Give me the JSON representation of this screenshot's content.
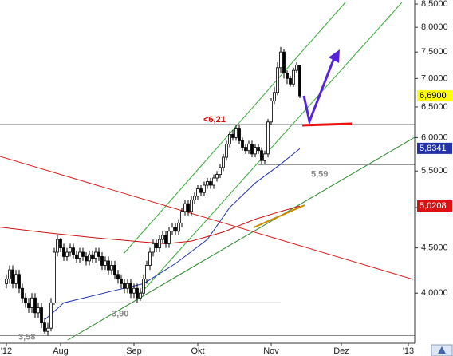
{
  "chart_data": {
    "type": "candlestick",
    "xlim": [
      0,
      130
    ],
    "xticks": [
      {
        "value": 2,
        "label": "'12"
      },
      {
        "value": 19,
        "label": "Aug"
      },
      {
        "value": 42,
        "label": "Sep"
      },
      {
        "value": 62,
        "label": "Okt"
      },
      {
        "value": 85,
        "label": "Nov"
      },
      {
        "value": 107,
        "label": "Dez"
      },
      {
        "value": 128,
        "label": "'13"
      }
    ],
    "ylim": [
      3.51,
      8.59
    ],
    "log_y": true,
    "yticks": [
      {
        "value": 4,
        "label": "4,0000"
      },
      {
        "value": 4.5,
        "label": "4,5000"
      },
      {
        "value": 5,
        "label": "5,0000"
      },
      {
        "value": 5.5,
        "label": "5,5000"
      },
      {
        "value": 6,
        "label": "6,0000"
      },
      {
        "value": 6.5,
        "label": "6,5000"
      },
      {
        "value": 7,
        "label": "7,0000"
      },
      {
        "value": 7.5,
        "label": "7,5000"
      },
      {
        "value": 8,
        "label": "8,0000"
      },
      {
        "value": 8.5,
        "label": "8,5000"
      }
    ],
    "candles": {
      "x": [
        2,
        3,
        4,
        5,
        6,
        7,
        8,
        9,
        10,
        11,
        12,
        13,
        14,
        15,
        16,
        17,
        18,
        19,
        20,
        21,
        22,
        23,
        24,
        25,
        26,
        27,
        28,
        29,
        30,
        31,
        32,
        33,
        34,
        35,
        36,
        37,
        38,
        39,
        40,
        41,
        42,
        43,
        44,
        45,
        46,
        47,
        48,
        49,
        50,
        51,
        52,
        53,
        54,
        55,
        56,
        57,
        58,
        59,
        60,
        61,
        62,
        63,
        64,
        65,
        66,
        67,
        68,
        69,
        70,
        71,
        72,
        73,
        74,
        75,
        76,
        77,
        78,
        79,
        80,
        81,
        82,
        83,
        84,
        85,
        86,
        87,
        88,
        89,
        90,
        91,
        92,
        93,
        94
      ],
      "open": [
        4.1,
        4.15,
        4.25,
        4.1,
        4.2,
        4.05,
        3.95,
        3.9,
        3.85,
        3.95,
        3.8,
        3.85,
        3.7,
        3.62,
        3.65,
        3.9,
        4.45,
        4.6,
        4.5,
        4.4,
        4.45,
        4.5,
        4.42,
        4.38,
        4.45,
        4.4,
        4.35,
        4.42,
        4.38,
        4.45,
        4.4,
        4.3,
        4.35,
        4.25,
        4.3,
        4.2,
        4.15,
        4.1,
        4.05,
        4.1,
        4.0,
        4.05,
        3.95,
        4.0,
        4.15,
        4.3,
        4.45,
        4.55,
        4.5,
        4.6,
        4.65,
        4.55,
        4.7,
        4.75,
        4.7,
        4.8,
        4.95,
        5.05,
        4.95,
        5.1,
        5.15,
        5.25,
        5.2,
        5.3,
        5.35,
        5.3,
        5.4,
        5.45,
        5.55,
        5.7,
        5.9,
        6.05,
        6.0,
        6.15,
        5.95,
        5.85,
        5.8,
        5.9,
        5.75,
        5.85,
        5.8,
        5.65,
        5.75,
        6.25,
        6.6,
        6.75,
        7.2,
        7.5,
        7.1,
        7.0,
        6.9,
        7.15,
        7.25
      ],
      "high": [
        4.2,
        4.3,
        4.3,
        4.25,
        4.25,
        4.1,
        4.0,
        3.95,
        4.0,
        4.0,
        3.9,
        3.9,
        3.75,
        3.7,
        3.95,
        4.5,
        4.65,
        4.62,
        4.55,
        4.5,
        4.55,
        4.55,
        4.47,
        4.5,
        4.5,
        4.45,
        4.47,
        4.47,
        4.5,
        4.5,
        4.45,
        4.4,
        4.4,
        4.35,
        4.35,
        4.25,
        4.2,
        4.15,
        4.15,
        4.15,
        4.1,
        4.1,
        4.05,
        4.2,
        4.35,
        4.5,
        4.6,
        4.6,
        4.65,
        4.7,
        4.7,
        4.75,
        4.8,
        4.8,
        4.85,
        5.0,
        5.1,
        5.1,
        5.15,
        5.2,
        5.3,
        5.3,
        5.35,
        5.4,
        5.4,
        5.45,
        5.5,
        5.6,
        5.75,
        5.95,
        6.1,
        6.12,
        6.2,
        6.21,
        6.0,
        5.9,
        5.95,
        5.95,
        5.9,
        5.9,
        5.85,
        5.8,
        6.3,
        6.65,
        6.85,
        7.3,
        7.6,
        7.55,
        7.15,
        7.05,
        7.2,
        7.3,
        7.25
      ],
      "low": [
        4.05,
        4.1,
        4.05,
        4.05,
        4.0,
        3.9,
        3.85,
        3.8,
        3.8,
        3.75,
        3.75,
        3.65,
        3.6,
        3.58,
        3.62,
        3.88,
        4.4,
        4.45,
        4.35,
        4.35,
        4.4,
        4.38,
        4.33,
        4.33,
        4.35,
        4.3,
        4.3,
        4.33,
        4.33,
        4.35,
        4.25,
        4.25,
        4.2,
        4.2,
        4.15,
        4.1,
        4.05,
        4.0,
        4.0,
        3.95,
        3.95,
        3.9,
        3.92,
        3.97,
        4.1,
        4.25,
        4.4,
        4.45,
        4.45,
        4.55,
        4.5,
        4.5,
        4.65,
        4.65,
        4.65,
        4.75,
        4.9,
        4.9,
        4.9,
        5.05,
        5.1,
        5.15,
        5.15,
        5.25,
        5.25,
        5.25,
        5.35,
        5.4,
        5.5,
        5.65,
        5.85,
        5.95,
        5.95,
        5.9,
        5.8,
        5.75,
        5.75,
        5.7,
        5.7,
        5.75,
        5.59,
        5.6,
        5.7,
        6.2,
        6.55,
        6.7,
        7.1,
        7.0,
        6.9,
        6.85,
        6.85,
        7.1,
        6.65
      ],
      "close": [
        4.15,
        4.25,
        4.1,
        4.2,
        4.05,
        3.95,
        3.9,
        3.85,
        3.95,
        3.8,
        3.85,
        3.7,
        3.62,
        3.65,
        3.9,
        4.45,
        4.6,
        4.5,
        4.4,
        4.45,
        4.5,
        4.42,
        4.38,
        4.45,
        4.4,
        4.35,
        4.42,
        4.38,
        4.45,
        4.4,
        4.3,
        4.35,
        4.25,
        4.3,
        4.2,
        4.15,
        4.1,
        4.05,
        4.1,
        4.0,
        4.05,
        3.95,
        4.0,
        4.15,
        4.3,
        4.45,
        4.55,
        4.5,
        4.6,
        4.65,
        4.55,
        4.7,
        4.75,
        4.7,
        4.8,
        4.95,
        5.05,
        4.95,
        5.1,
        5.15,
        5.25,
        5.2,
        5.3,
        5.35,
        5.3,
        5.4,
        5.45,
        5.55,
        5.7,
        5.9,
        6.05,
        6.0,
        6.15,
        5.95,
        5.85,
        5.8,
        5.9,
        5.75,
        5.85,
        5.8,
        5.65,
        5.75,
        6.25,
        6.6,
        6.75,
        7.2,
        7.5,
        7.1,
        7.0,
        6.9,
        7.15,
        7.25,
        6.69
      ]
    },
    "moving_averages": [
      {
        "color": "#2233aa",
        "x": [
          14,
          20,
          35,
          45,
          55,
          65,
          72,
          80,
          88,
          94
        ],
        "values": [
          3.73,
          3.9,
          4.02,
          4.1,
          4.32,
          4.6,
          5.0,
          5.33,
          5.6,
          5.83
        ]
      },
      {
        "color": "#cc1111",
        "x": [
          0,
          15,
          30,
          45,
          52,
          60,
          70,
          80,
          88,
          94
        ],
        "values": [
          4.75,
          4.68,
          4.62,
          4.57,
          4.55,
          4.58,
          4.69,
          4.85,
          4.95,
          5.02
        ]
      }
    ],
    "levels": [
      {
        "value": 6.21,
        "label": "<6,21",
        "color": "#e00000",
        "x": [
          0,
          130
        ]
      },
      {
        "value": 5.59,
        "label": "5,59",
        "color": "#888888",
        "x": [
          81,
          130
        ]
      },
      {
        "value": 3.9,
        "label": "3,90",
        "color": "#888888",
        "x": [
          16,
          88
        ]
      },
      {
        "value": 3.58,
        "label": "3,58",
        "color": "#888888",
        "x": [
          0,
          130
        ]
      }
    ],
    "tags": [
      {
        "value": 6.69,
        "label": "6,6900",
        "color": "#ffff00",
        "text_color": "#000000"
      },
      {
        "value": 5.8341,
        "label": "5,8341",
        "color": "#2233aa",
        "text_color": "#ffffff"
      },
      {
        "value": 5.0208,
        "label": "5,0208",
        "color": "#dd1111",
        "text_color": "#ffffff"
      }
    ]
  }
}
